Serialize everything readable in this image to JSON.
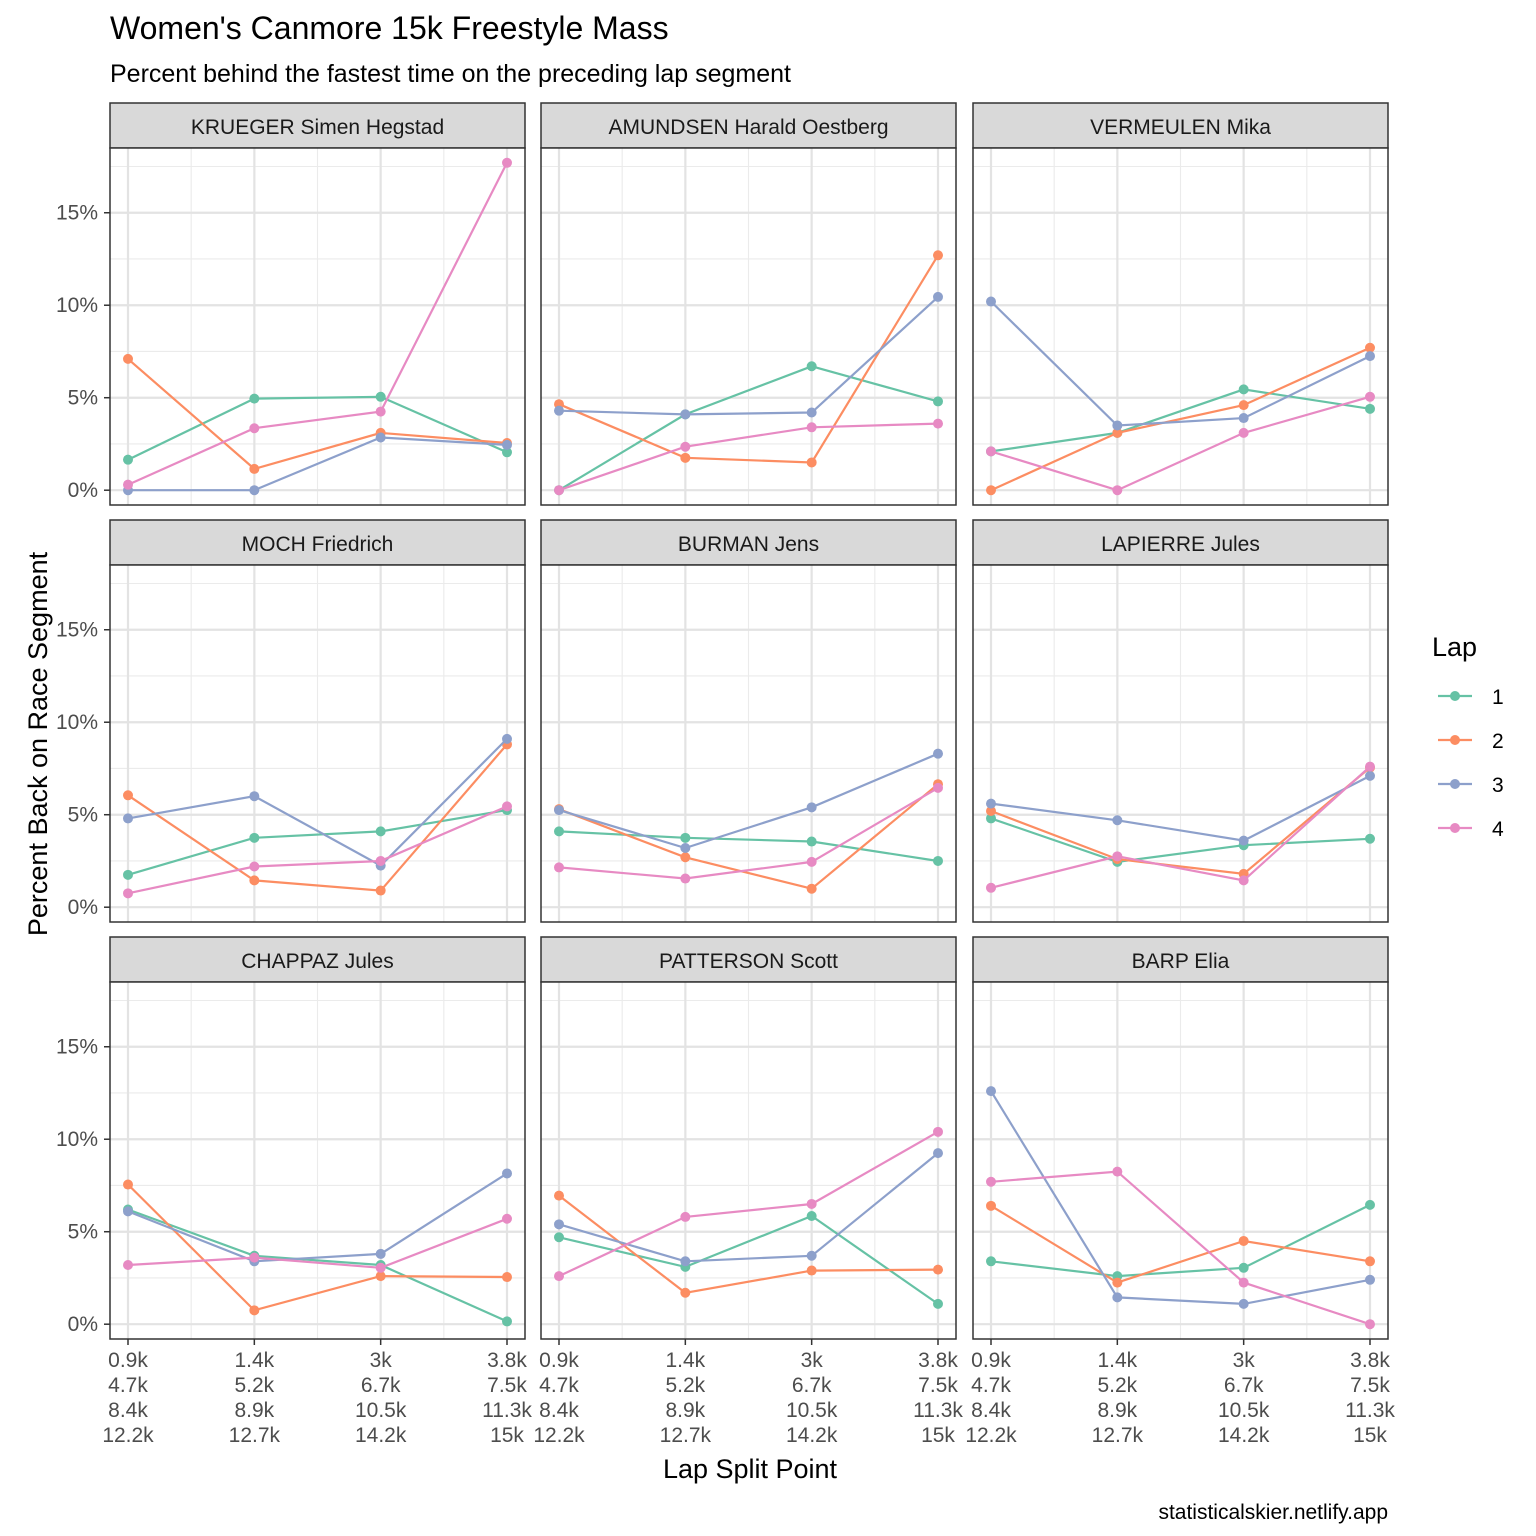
{
  "chart_data": {
    "type": "line",
    "title": "Women's Canmore 15k Freestyle Mass",
    "subtitle": "Percent behind the fastest time on the preceding lap segment",
    "xlabel": "Lap Split Point",
    "ylabel": "Percent Back on Race Segment",
    "caption": "statisticalskier.netlify.app",
    "x_ticks": [
      [
        "0.9k",
        "4.7k",
        "8.4k",
        "12.2k"
      ],
      [
        "1.4k",
        "5.2k",
        "8.9k",
        "12.7k"
      ],
      [
        "3k",
        "6.7k",
        "10.5k",
        "14.2k"
      ],
      [
        "3.8k",
        "7.5k",
        "11.3k",
        "15k"
      ]
    ],
    "y_ticks": [
      0,
      5,
      10,
      15
    ],
    "y_tick_labels": [
      "0%",
      "5%",
      "10%",
      "15%"
    ],
    "ylim": [
      -0.8,
      18.5
    ],
    "grid": true,
    "legend": {
      "title": "Lap",
      "placement": "right",
      "entries": [
        "1",
        "2",
        "3",
        "4"
      ],
      "colors": [
        "#66C2A5",
        "#FC8D62",
        "#8DA0CB",
        "#E78AC3"
      ]
    },
    "panels": [
      {
        "name": "KRUEGER Simen Hegstad",
        "series": [
          {
            "name": "1",
            "values": [
              1.65,
              4.95,
              5.05,
              2.05
            ]
          },
          {
            "name": "2",
            "values": [
              7.1,
              1.15,
              3.1,
              2.55
            ]
          },
          {
            "name": "3",
            "values": [
              0.0,
              0.0,
              2.85,
              2.45
            ]
          },
          {
            "name": "4",
            "values": [
              0.3,
              3.35,
              4.25,
              17.7
            ]
          }
        ]
      },
      {
        "name": "AMUNDSEN Harald Oestberg",
        "series": [
          {
            "name": "1",
            "values": [
              0.0,
              4.1,
              6.7,
              4.8
            ]
          },
          {
            "name": "2",
            "values": [
              4.65,
              1.75,
              1.5,
              12.7
            ]
          },
          {
            "name": "3",
            "values": [
              4.3,
              4.1,
              4.2,
              10.45
            ]
          },
          {
            "name": "4",
            "values": [
              0.0,
              2.35,
              3.4,
              3.6
            ]
          }
        ]
      },
      {
        "name": "VERMEULEN Mika",
        "series": [
          {
            "name": "1",
            "values": [
              2.1,
              3.1,
              5.45,
              4.4
            ]
          },
          {
            "name": "2",
            "values": [
              0.0,
              3.1,
              4.6,
              7.7
            ]
          },
          {
            "name": "3",
            "values": [
              10.2,
              3.5,
              3.9,
              7.25
            ]
          },
          {
            "name": "4",
            "values": [
              2.1,
              0.0,
              3.1,
              5.05
            ]
          }
        ]
      },
      {
        "name": "MOCH Friedrich",
        "series": [
          {
            "name": "1",
            "values": [
              1.75,
              3.75,
              4.1,
              5.25
            ]
          },
          {
            "name": "2",
            "values": [
              6.05,
              1.45,
              0.9,
              8.8
            ]
          },
          {
            "name": "3",
            "values": [
              4.8,
              6.0,
              2.25,
              9.1
            ]
          },
          {
            "name": "4",
            "values": [
              0.75,
              2.2,
              2.5,
              5.45
            ]
          }
        ]
      },
      {
        "name": "BURMAN Jens",
        "series": [
          {
            "name": "1",
            "values": [
              4.1,
              3.75,
              3.55,
              2.5
            ]
          },
          {
            "name": "2",
            "values": [
              5.3,
              2.7,
              1.0,
              6.65
            ]
          },
          {
            "name": "3",
            "values": [
              5.25,
              3.2,
              5.4,
              8.3
            ]
          },
          {
            "name": "4",
            "values": [
              2.15,
              1.55,
              2.45,
              6.45
            ]
          }
        ]
      },
      {
        "name": "LAPIERRE Jules",
        "series": [
          {
            "name": "1",
            "values": [
              4.8,
              2.45,
              3.35,
              3.7
            ]
          },
          {
            "name": "2",
            "values": [
              5.2,
              2.6,
              1.8,
              7.55
            ]
          },
          {
            "name": "3",
            "values": [
              5.6,
              4.7,
              3.6,
              7.1
            ]
          },
          {
            "name": "4",
            "values": [
              1.05,
              2.75,
              1.45,
              7.6
            ]
          }
        ]
      },
      {
        "name": "CHAPPAZ Jules",
        "series": [
          {
            "name": "1",
            "values": [
              6.2,
              3.7,
              3.2,
              0.15
            ]
          },
          {
            "name": "2",
            "values": [
              7.55,
              0.75,
              2.6,
              2.55
            ]
          },
          {
            "name": "3",
            "values": [
              6.1,
              3.4,
              3.8,
              8.15
            ]
          },
          {
            "name": "4",
            "values": [
              3.2,
              3.6,
              3.05,
              5.7
            ]
          }
        ]
      },
      {
        "name": "PATTERSON Scott",
        "series": [
          {
            "name": "1",
            "values": [
              4.7,
              3.1,
              5.85,
              1.1
            ]
          },
          {
            "name": "2",
            "values": [
              6.95,
              1.7,
              2.9,
              2.95
            ]
          },
          {
            "name": "3",
            "values": [
              5.4,
              3.4,
              3.7,
              9.25
            ]
          },
          {
            "name": "4",
            "values": [
              2.6,
              5.8,
              6.5,
              10.4
            ]
          }
        ]
      },
      {
        "name": "BARP Elia",
        "series": [
          {
            "name": "1",
            "values": [
              3.4,
              2.6,
              3.05,
              6.45
            ]
          },
          {
            "name": "2",
            "values": [
              6.4,
              2.25,
              4.5,
              3.4
            ]
          },
          {
            "name": "3",
            "values": [
              12.6,
              1.45,
              1.1,
              2.4
            ]
          },
          {
            "name": "4",
            "values": [
              7.7,
              8.25,
              2.25,
              0.0
            ]
          }
        ]
      }
    ]
  }
}
